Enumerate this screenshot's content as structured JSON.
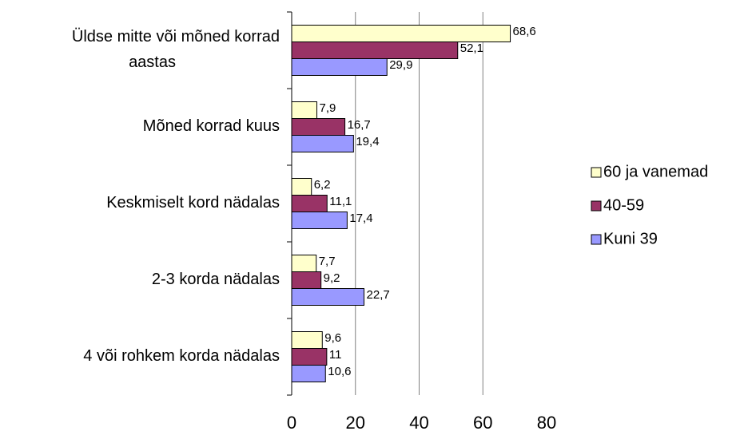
{
  "chart_data": {
    "type": "hbar",
    "categories": [
      "Üldse mitte või mõned korrad\naastas",
      "Mõned korrad kuus",
      "Keskmiselt kord nädalas",
      "2-3 korda nädalas",
      "4 või rohkem korda nädalas"
    ],
    "series": [
      {
        "name": "60 ja vanemad",
        "color": "#ffffcc",
        "values": [
          68.6,
          7.9,
          6.2,
          7.7,
          9.6
        ],
        "value_labels": [
          "68,6",
          "7,9",
          "6,2",
          "7,7",
          "9,6"
        ]
      },
      {
        "name": "40-59",
        "color": "#993366",
        "values": [
          52.1,
          16.7,
          11.1,
          9.2,
          11
        ],
        "value_labels": [
          "52,1",
          "16,7",
          "11,1",
          "9,2",
          "11"
        ]
      },
      {
        "name": "Kuni 39",
        "color": "#9999ff",
        "values": [
          29.9,
          19.4,
          17.4,
          22.7,
          10.6
        ],
        "value_labels": [
          "29,9",
          "19,4",
          "17,4",
          "22,7",
          "10,6"
        ]
      }
    ],
    "xlim": [
      0,
      80
    ],
    "xticks": [
      0,
      20,
      40,
      60,
      80
    ],
    "grid": true,
    "legend": "right"
  }
}
